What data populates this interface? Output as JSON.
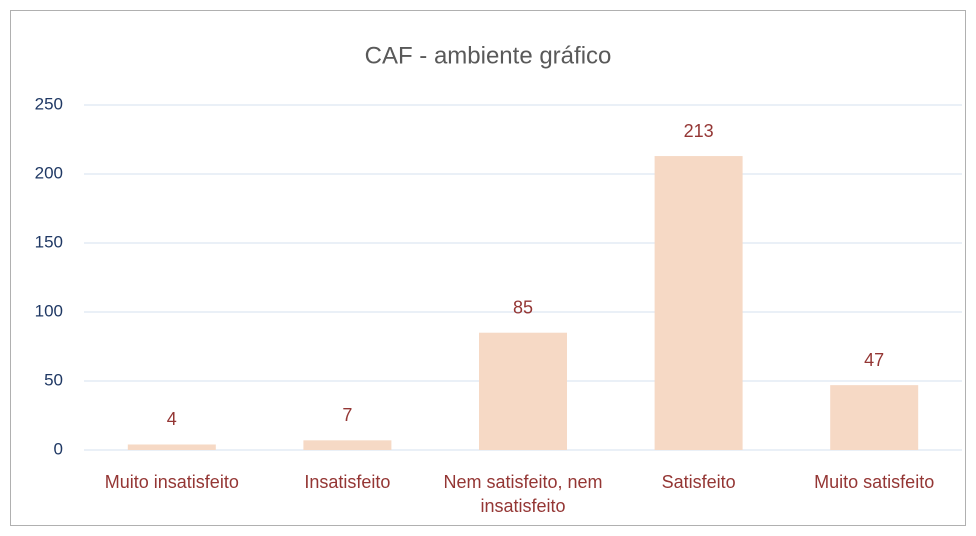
{
  "chart_data": {
    "type": "bar",
    "title": "CAF - ambiente gráfico",
    "categories": [
      "Muito insatisfeito",
      "Insatisfeito",
      "Nem satisfeito, nem insatisfeito",
      "Satisfeito",
      "Muito satisfeito"
    ],
    "values": [
      4,
      7,
      85,
      213,
      47
    ],
    "color": "#f6d9c5",
    "ylim": [
      0,
      250
    ],
    "yticks": [
      0,
      50,
      100,
      150,
      200,
      250
    ],
    "grid": true
  }
}
